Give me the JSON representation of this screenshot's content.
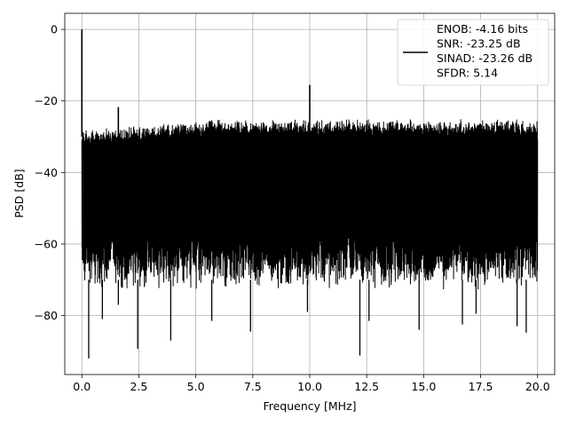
{
  "chart_data": {
    "type": "line",
    "xlabel": "Frequency [MHz]",
    "ylabel": "PSD [dB]",
    "xlim": [
      -0.75,
      20.75
    ],
    "ylim": [
      -96.5,
      4.5
    ],
    "x_ticks": [
      0.0,
      2.5,
      5.0,
      7.5,
      10.0,
      12.5,
      15.0,
      17.5,
      20.0
    ],
    "x_tick_labels": [
      "0.0",
      "2.5",
      "5.0",
      "7.5",
      "10.0",
      "12.5",
      "15.0",
      "17.5",
      "20.0"
    ],
    "y_ticks": [
      0,
      -20,
      -40,
      -60,
      -80
    ],
    "y_tick_labels": [
      "0",
      "−20",
      "−40",
      "−60",
      "−80"
    ],
    "grid": true,
    "legend_position": "top-right",
    "legend_entries": [
      "ENOB: -4.16 bits",
      "SNR: -23.25 dB",
      "SINAD: -23.26 dB",
      "SFDR: 5.14"
    ],
    "series": [
      {
        "color": "#000000",
        "x_range": [
          0.0,
          20.0
        ],
        "noise_upper_envelope_db": -27,
        "noise_lower_envelope_db": -70,
        "spikes": [
          {
            "x": 0.0,
            "y": 0.0
          },
          {
            "x": 1.6,
            "y": -21.7
          },
          {
            "x": 10.0,
            "y": -15.5
          }
        ],
        "dips": [
          {
            "x": 0.3,
            "y": -92.0
          },
          {
            "x": 0.9,
            "y": -81.0
          },
          {
            "x": 1.6,
            "y": -77.0
          },
          {
            "x": 2.45,
            "y": -89.3
          },
          {
            "x": 3.9,
            "y": -87.0
          },
          {
            "x": 5.7,
            "y": -81.5
          },
          {
            "x": 7.4,
            "y": -84.5
          },
          {
            "x": 9.9,
            "y": -79.0
          },
          {
            "x": 12.2,
            "y": -91.2
          },
          {
            "x": 12.6,
            "y": -81.5
          },
          {
            "x": 14.8,
            "y": -84.0
          },
          {
            "x": 16.7,
            "y": -82.5
          },
          {
            "x": 17.3,
            "y": -79.5
          },
          {
            "x": 19.1,
            "y": -83.0
          },
          {
            "x": 19.5,
            "y": -84.8
          }
        ]
      }
    ]
  }
}
